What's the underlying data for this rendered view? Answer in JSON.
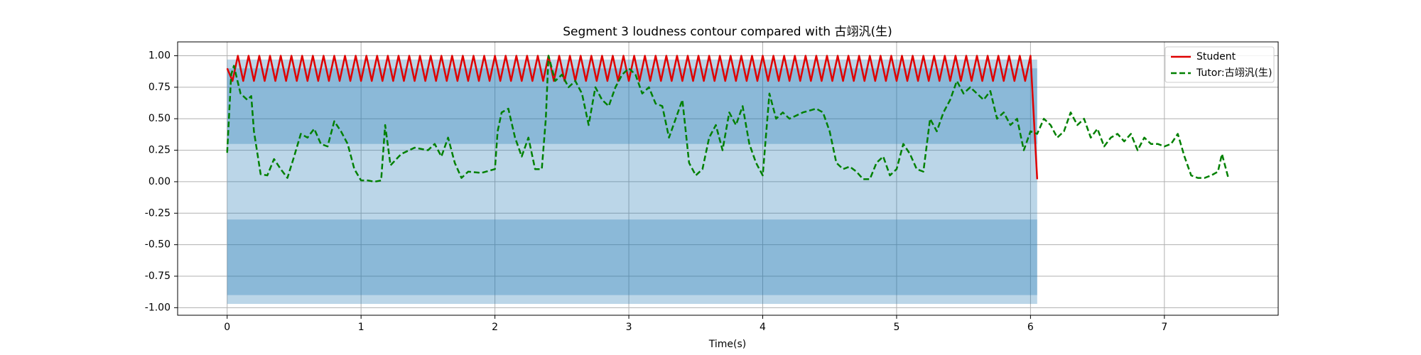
{
  "chart_data": {
    "type": "line",
    "title": "Segment 3 loudness contour compared with 古翊汎(生)",
    "xlabel": "Time(s)",
    "xlim": [
      -0.37,
      7.85
    ],
    "ylim": [
      -1.06,
      1.11
    ],
    "xticks": [
      0,
      1,
      2,
      3,
      4,
      5,
      6,
      7
    ],
    "yticks": [
      {
        "value": 1,
        "label": "1.00"
      },
      0.75,
      {
        "value": 0.5,
        "label": "0.50"
      },
      0.25,
      {
        "value": 0,
        "label": "0.00"
      },
      -0.25,
      {
        "value": -0.5,
        "label": "-0.50"
      },
      -0.75,
      {
        "value": -1,
        "label": "-1.00"
      }
    ],
    "grid": true,
    "legend": "upper right",
    "waveform": {
      "color": "#1f77b4",
      "x": [
        0,
        6.05
      ],
      "bands": [
        [
          -0.97,
          0.97
        ],
        [
          0.3,
          0.9
        ],
        [
          -0.9,
          -0.3
        ]
      ]
    },
    "series": [
      {
        "name": "Student",
        "color": "#e00000",
        "linestyle": "solid",
        "x": [
          0,
          0.04,
          0.08,
          0.12,
          0.16,
          0.2,
          0.24,
          0.28,
          0.32,
          0.36,
          0.4,
          0.44,
          0.48,
          0.52,
          0.56,
          0.6,
          0.64,
          0.68,
          0.72,
          0.76,
          0.8,
          0.84,
          0.88,
          0.92,
          0.96,
          1,
          1.04,
          1.08,
          1.12,
          1.16,
          1.2,
          1.24,
          1.28,
          1.32,
          1.36,
          1.4,
          1.44,
          1.48,
          1.52,
          1.56,
          1.6,
          1.64,
          1.68,
          1.72,
          1.76,
          1.8,
          1.84,
          1.88,
          1.92,
          1.96,
          2,
          2.04,
          2.08,
          2.12,
          2.16,
          2.2,
          2.24,
          2.28,
          2.32,
          2.36,
          2.4,
          2.44,
          2.48,
          2.52,
          2.56,
          2.6,
          2.64,
          2.68,
          2.72,
          2.76,
          2.8,
          2.84,
          2.88,
          2.92,
          2.96,
          3,
          3.04,
          3.08,
          3.12,
          3.16,
          3.2,
          3.24,
          3.28,
          3.32,
          3.36,
          3.4,
          3.44,
          3.48,
          3.52,
          3.56,
          3.6,
          3.64,
          3.68,
          3.72,
          3.76,
          3.8,
          3.84,
          3.88,
          3.92,
          3.96,
          4,
          4.04,
          4.08,
          4.12,
          4.16,
          4.2,
          4.24,
          4.28,
          4.32,
          4.36,
          4.4,
          4.44,
          4.48,
          4.52,
          4.56,
          4.6,
          4.64,
          4.68,
          4.72,
          4.76,
          4.8,
          4.84,
          4.88,
          4.92,
          4.96,
          5,
          5.04,
          5.08,
          5.12,
          5.16,
          5.2,
          5.24,
          5.28,
          5.32,
          5.36,
          5.4,
          5.44,
          5.48,
          5.52,
          5.56,
          5.6,
          5.64,
          5.68,
          5.72,
          5.76,
          5.8,
          5.84,
          5.88,
          5.92,
          5.96,
          6,
          6.05
        ],
        "values": [
          0.9,
          0.8,
          1,
          0.8,
          1,
          0.8,
          1,
          0.8,
          1,
          0.8,
          1,
          0.8,
          1,
          0.8,
          1,
          0.8,
          1,
          0.8,
          1,
          0.8,
          1,
          0.8,
          1,
          0.8,
          1,
          0.8,
          1,
          0.8,
          1,
          0.8,
          1,
          0.8,
          1,
          0.8,
          1,
          0.8,
          1,
          0.8,
          1,
          0.8,
          1,
          0.8,
          1,
          0.8,
          1,
          0.8,
          1,
          0.8,
          1,
          0.8,
          1,
          0.8,
          1,
          0.8,
          1,
          0.8,
          1,
          0.8,
          1,
          0.8,
          1,
          0.8,
          1,
          0.8,
          1,
          0.8,
          1,
          0.8,
          1,
          0.8,
          1,
          0.8,
          1,
          0.8,
          1,
          0.8,
          1,
          0.8,
          1,
          0.8,
          1,
          0.8,
          1,
          0.8,
          1,
          0.8,
          1,
          0.8,
          1,
          0.8,
          1,
          0.8,
          1,
          0.8,
          1,
          0.8,
          1,
          0.8,
          1,
          0.8,
          1,
          0.8,
          1,
          0.8,
          1,
          0.8,
          1,
          0.8,
          1,
          0.8,
          1,
          0.8,
          1,
          0.8,
          1,
          0.8,
          1,
          0.8,
          1,
          0.8,
          1,
          0.8,
          1,
          0.8,
          1,
          0.8,
          1,
          0.8,
          1,
          0.8,
          1,
          0.8,
          1,
          0.8,
          1,
          0.8,
          1,
          0.8,
          1,
          0.8,
          1,
          0.8,
          1,
          0.8,
          1,
          0.8,
          1,
          0.8,
          1,
          0.8,
          1,
          0.02
        ]
      },
      {
        "name": "Tutor:古翊汎(生)",
        "color": "#008000",
        "linestyle": "dashed",
        "x": [
          0,
          0.03,
          0.05,
          0.1,
          0.15,
          0.18,
          0.2,
          0.25,
          0.3,
          0.35,
          0.4,
          0.45,
          0.5,
          0.55,
          0.6,
          0.65,
          0.7,
          0.75,
          0.8,
          0.85,
          0.9,
          0.95,
          1,
          1.05,
          1.1,
          1.15,
          1.18,
          1.22,
          1.3,
          1.4,
          1.5,
          1.55,
          1.6,
          1.65,
          1.7,
          1.75,
          1.8,
          1.9,
          2,
          2.02,
          2.05,
          2.1,
          2.15,
          2.2,
          2.25,
          2.3,
          2.35,
          2.38,
          2.4,
          2.45,
          2.5,
          2.55,
          2.6,
          2.65,
          2.7,
          2.75,
          2.8,
          2.85,
          2.9,
          2.95,
          3,
          3.05,
          3.1,
          3.15,
          3.2,
          3.25,
          3.3,
          3.35,
          3.4,
          3.45,
          3.5,
          3.55,
          3.6,
          3.65,
          3.7,
          3.75,
          3.8,
          3.85,
          3.9,
          3.95,
          4,
          4.05,
          4.1,
          4.15,
          4.2,
          4.3,
          4.4,
          4.45,
          4.5,
          4.55,
          4.6,
          4.65,
          4.7,
          4.75,
          4.8,
          4.85,
          4.9,
          4.95,
          5,
          5.05,
          5.1,
          5.15,
          5.2,
          5.25,
          5.3,
          5.35,
          5.4,
          5.45,
          5.5,
          5.55,
          5.6,
          5.65,
          5.7,
          5.75,
          5.8,
          5.85,
          5.9,
          5.95,
          6,
          6.05,
          6.1,
          6.15,
          6.2,
          6.25,
          6.3,
          6.35,
          6.4,
          6.45,
          6.5,
          6.55,
          6.6,
          6.65,
          6.7,
          6.75,
          6.8,
          6.85,
          6.9,
          6.95,
          7,
          7.05,
          7.1,
          7.15,
          7.2,
          7.25,
          7.3,
          7.35,
          7.4,
          7.43,
          7.48
        ],
        "values": [
          0.23,
          0.85,
          0.92,
          0.7,
          0.65,
          0.68,
          0.4,
          0.06,
          0.05,
          0.18,
          0.1,
          0.03,
          0.2,
          0.38,
          0.35,
          0.42,
          0.3,
          0.28,
          0.48,
          0.4,
          0.3,
          0.1,
          0.01,
          0.01,
          0,
          0.01,
          0.45,
          0.13,
          0.22,
          0.27,
          0.25,
          0.3,
          0.2,
          0.35,
          0.15,
          0.03,
          0.08,
          0.07,
          0.1,
          0.4,
          0.55,
          0.58,
          0.35,
          0.2,
          0.35,
          0.1,
          0.1,
          0.5,
          1,
          0.8,
          0.85,
          0.75,
          0.8,
          0.7,
          0.45,
          0.75,
          0.65,
          0.6,
          0.75,
          0.85,
          0.9,
          0.85,
          0.7,
          0.75,
          0.62,
          0.6,
          0.35,
          0.5,
          0.65,
          0.15,
          0.05,
          0.1,
          0.35,
          0.45,
          0.25,
          0.55,
          0.45,
          0.6,
          0.3,
          0.15,
          0.05,
          0.7,
          0.5,
          0.55,
          0.5,
          0.55,
          0.58,
          0.55,
          0.4,
          0.15,
          0.1,
          0.12,
          0.08,
          0.02,
          0.02,
          0.15,
          0.2,
          0.05,
          0.1,
          0.3,
          0.22,
          0.1,
          0.08,
          0.5,
          0.4,
          0.55,
          0.65,
          0.8,
          0.7,
          0.75,
          0.7,
          0.65,
          0.72,
          0.5,
          0.55,
          0.45,
          0.5,
          0.25,
          0.4,
          0.38,
          0.5,
          0.45,
          0.35,
          0.4,
          0.55,
          0.45,
          0.5,
          0.35,
          0.42,
          0.28,
          0.35,
          0.38,
          0.32,
          0.38,
          0.25,
          0.35,
          0.3,
          0.3,
          0.28,
          0.3,
          0.38,
          0.2,
          0.05,
          0.03,
          0.03,
          0.05,
          0.08,
          0.22,
          0.02
        ]
      }
    ]
  }
}
